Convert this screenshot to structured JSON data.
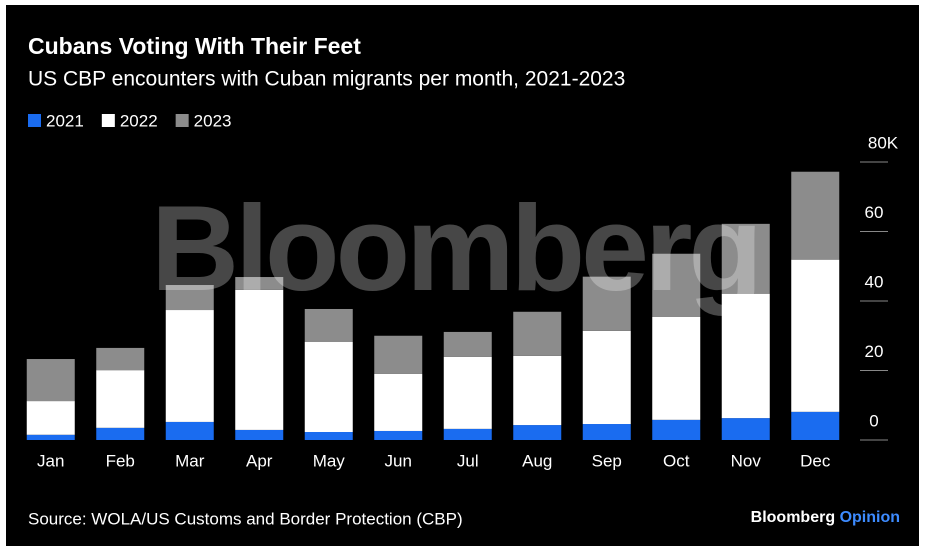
{
  "chart_data": {
    "type": "bar",
    "stacked": true,
    "title": "Cubans Voting With Their Feet",
    "subtitle": "US CBP encounters with Cuban migrants per month, 2021-2023",
    "categories": [
      "Jan",
      "Feb",
      "Mar",
      "Apr",
      "May",
      "Jun",
      "Jul",
      "Aug",
      "Sep",
      "Oct",
      "Nov",
      "Dec"
    ],
    "series": [
      {
        "name": "2021",
        "color": "#1a6cf0",
        "values": [
          1.5,
          3.5,
          5.2,
          2.9,
          2.3,
          2.6,
          3.2,
          4.3,
          4.6,
          5.8,
          6.3,
          8.1
        ]
      },
      {
        "name": "2022",
        "color": "#ffffff",
        "values": [
          9.7,
          16.6,
          32.2,
          40.3,
          25.9,
          16.4,
          20.7,
          19.9,
          26.8,
          29.6,
          35.8,
          43.8
        ]
      },
      {
        "name": "2023",
        "color": "#8c8c8c",
        "values": [
          12.1,
          6.4,
          7.2,
          3.7,
          9.5,
          11,
          7.2,
          12.7,
          15.6,
          18.2,
          20.1,
          25.3
        ]
      }
    ],
    "ylim": [
      0,
      80
    ],
    "yticks": [
      0,
      20,
      40,
      60,
      {
        "value": 80,
        "label": "80K"
      }
    ],
    "watermark": "Bloomberg",
    "source": "Source: WOLA/US Customs and Border Protection (CBP)",
    "brand": "Bloomberg",
    "brand_suffix": "Opinion"
  }
}
